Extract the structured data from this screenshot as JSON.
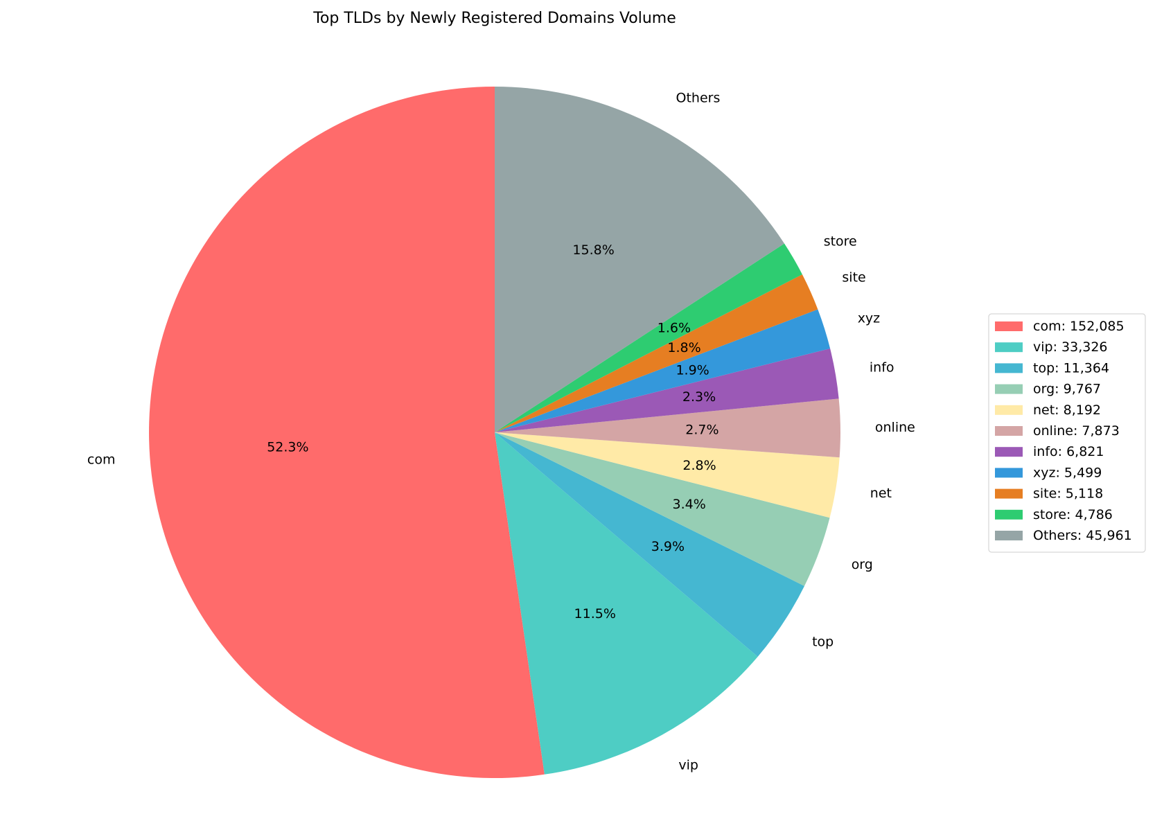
{
  "chart_data": {
    "type": "pie",
    "title": "Top TLDs by Newly Registered Domains Volume",
    "start_angle_deg": 90,
    "direction": "counterclockwise",
    "legend_placement": "right",
    "slices": [
      {
        "label": "com",
        "value": 152085,
        "percent_label": "52.3%",
        "legend_label": "com: 152,085",
        "color": "#ff6b6b"
      },
      {
        "label": "vip",
        "value": 33326,
        "percent_label": "11.5%",
        "legend_label": "vip: 33,326",
        "color": "#4ecdc4"
      },
      {
        "label": "top",
        "value": 11364,
        "percent_label": "3.9%",
        "legend_label": "top: 11,364",
        "color": "#45b7d1"
      },
      {
        "label": "org",
        "value": 9767,
        "percent_label": "3.4%",
        "legend_label": "org: 9,767",
        "color": "#96ceb4"
      },
      {
        "label": "net",
        "value": 8192,
        "percent_label": "2.8%",
        "legend_label": "net: 8,192",
        "color": "#ffeaa7"
      },
      {
        "label": "online",
        "value": 7873,
        "percent_label": "2.7%",
        "legend_label": "online: 7,873",
        "color": "#d4a5a5"
      },
      {
        "label": "info",
        "value": 6821,
        "percent_label": "2.3%",
        "legend_label": "info: 6,821",
        "color": "#9b59b6"
      },
      {
        "label": "xyz",
        "value": 5499,
        "percent_label": "1.9%",
        "legend_label": "xyz: 5,499",
        "color": "#3498db"
      },
      {
        "label": "site",
        "value": 5118,
        "percent_label": "1.8%",
        "legend_label": "site: 5,118",
        "color": "#e67e22"
      },
      {
        "label": "store",
        "value": 4786,
        "percent_label": "1.6%",
        "legend_label": "store: 4,786",
        "color": "#2ecc71"
      },
      {
        "label": "Others",
        "value": 45961,
        "percent_label": "15.8%",
        "legend_label": "Others: 45,961",
        "color": "#95a5a6"
      }
    ]
  }
}
